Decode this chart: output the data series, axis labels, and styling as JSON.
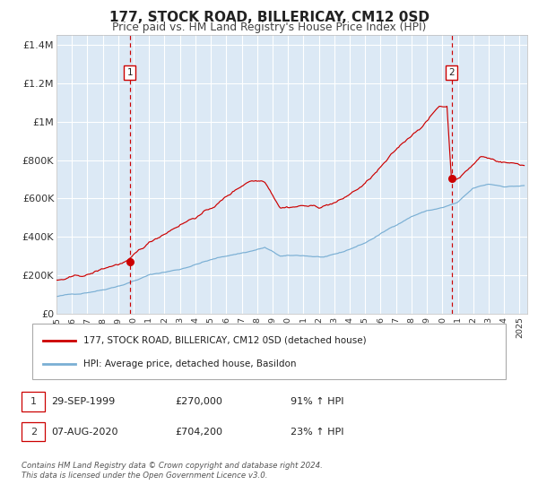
{
  "title": "177, STOCK ROAD, BILLERICAY, CM12 0SD",
  "subtitle": "Price paid vs. HM Land Registry's House Price Index (HPI)",
  "legend_line1": "177, STOCK ROAD, BILLERICAY, CM12 0SD (detached house)",
  "legend_line2": "HPI: Average price, detached house, Basildon",
  "annotation1_date": "29-SEP-1999",
  "annotation1_price": "£270,000",
  "annotation1_hpi": "91% ↑ HPI",
  "annotation1_year": 1999.75,
  "annotation1_value": 270000,
  "annotation2_date": "07-AUG-2020",
  "annotation2_price": "£704,200",
  "annotation2_hpi": "23% ↑ HPI",
  "annotation2_year": 2020.6,
  "annotation2_value": 704200,
  "red_color": "#cc0000",
  "blue_color": "#7aafd4",
  "chart_bg": "#dce9f5",
  "fig_bg": "#ffffff",
  "grid_color": "#ffffff",
  "yticks": [
    0,
    200000,
    400000,
    600000,
    800000,
    1000000,
    1200000,
    1400000
  ],
  "ytick_labels": [
    "£0",
    "£200K",
    "£400K",
    "£600K",
    "£800K",
    "£1M",
    "£1.2M",
    "£1.4M"
  ],
  "ylim": [
    0,
    1450000
  ],
  "xlim_start": 1995.0,
  "xlim_end": 2025.5,
  "xticks": [
    1995,
    1996,
    1997,
    1998,
    1999,
    2000,
    2001,
    2002,
    2003,
    2004,
    2005,
    2006,
    2007,
    2008,
    2009,
    2010,
    2011,
    2012,
    2013,
    2014,
    2015,
    2016,
    2017,
    2018,
    2019,
    2020,
    2021,
    2022,
    2023,
    2024,
    2025
  ],
  "footer_text": "Contains HM Land Registry data © Crown copyright and database right 2024.\nThis data is licensed under the Open Government Licence v3.0."
}
